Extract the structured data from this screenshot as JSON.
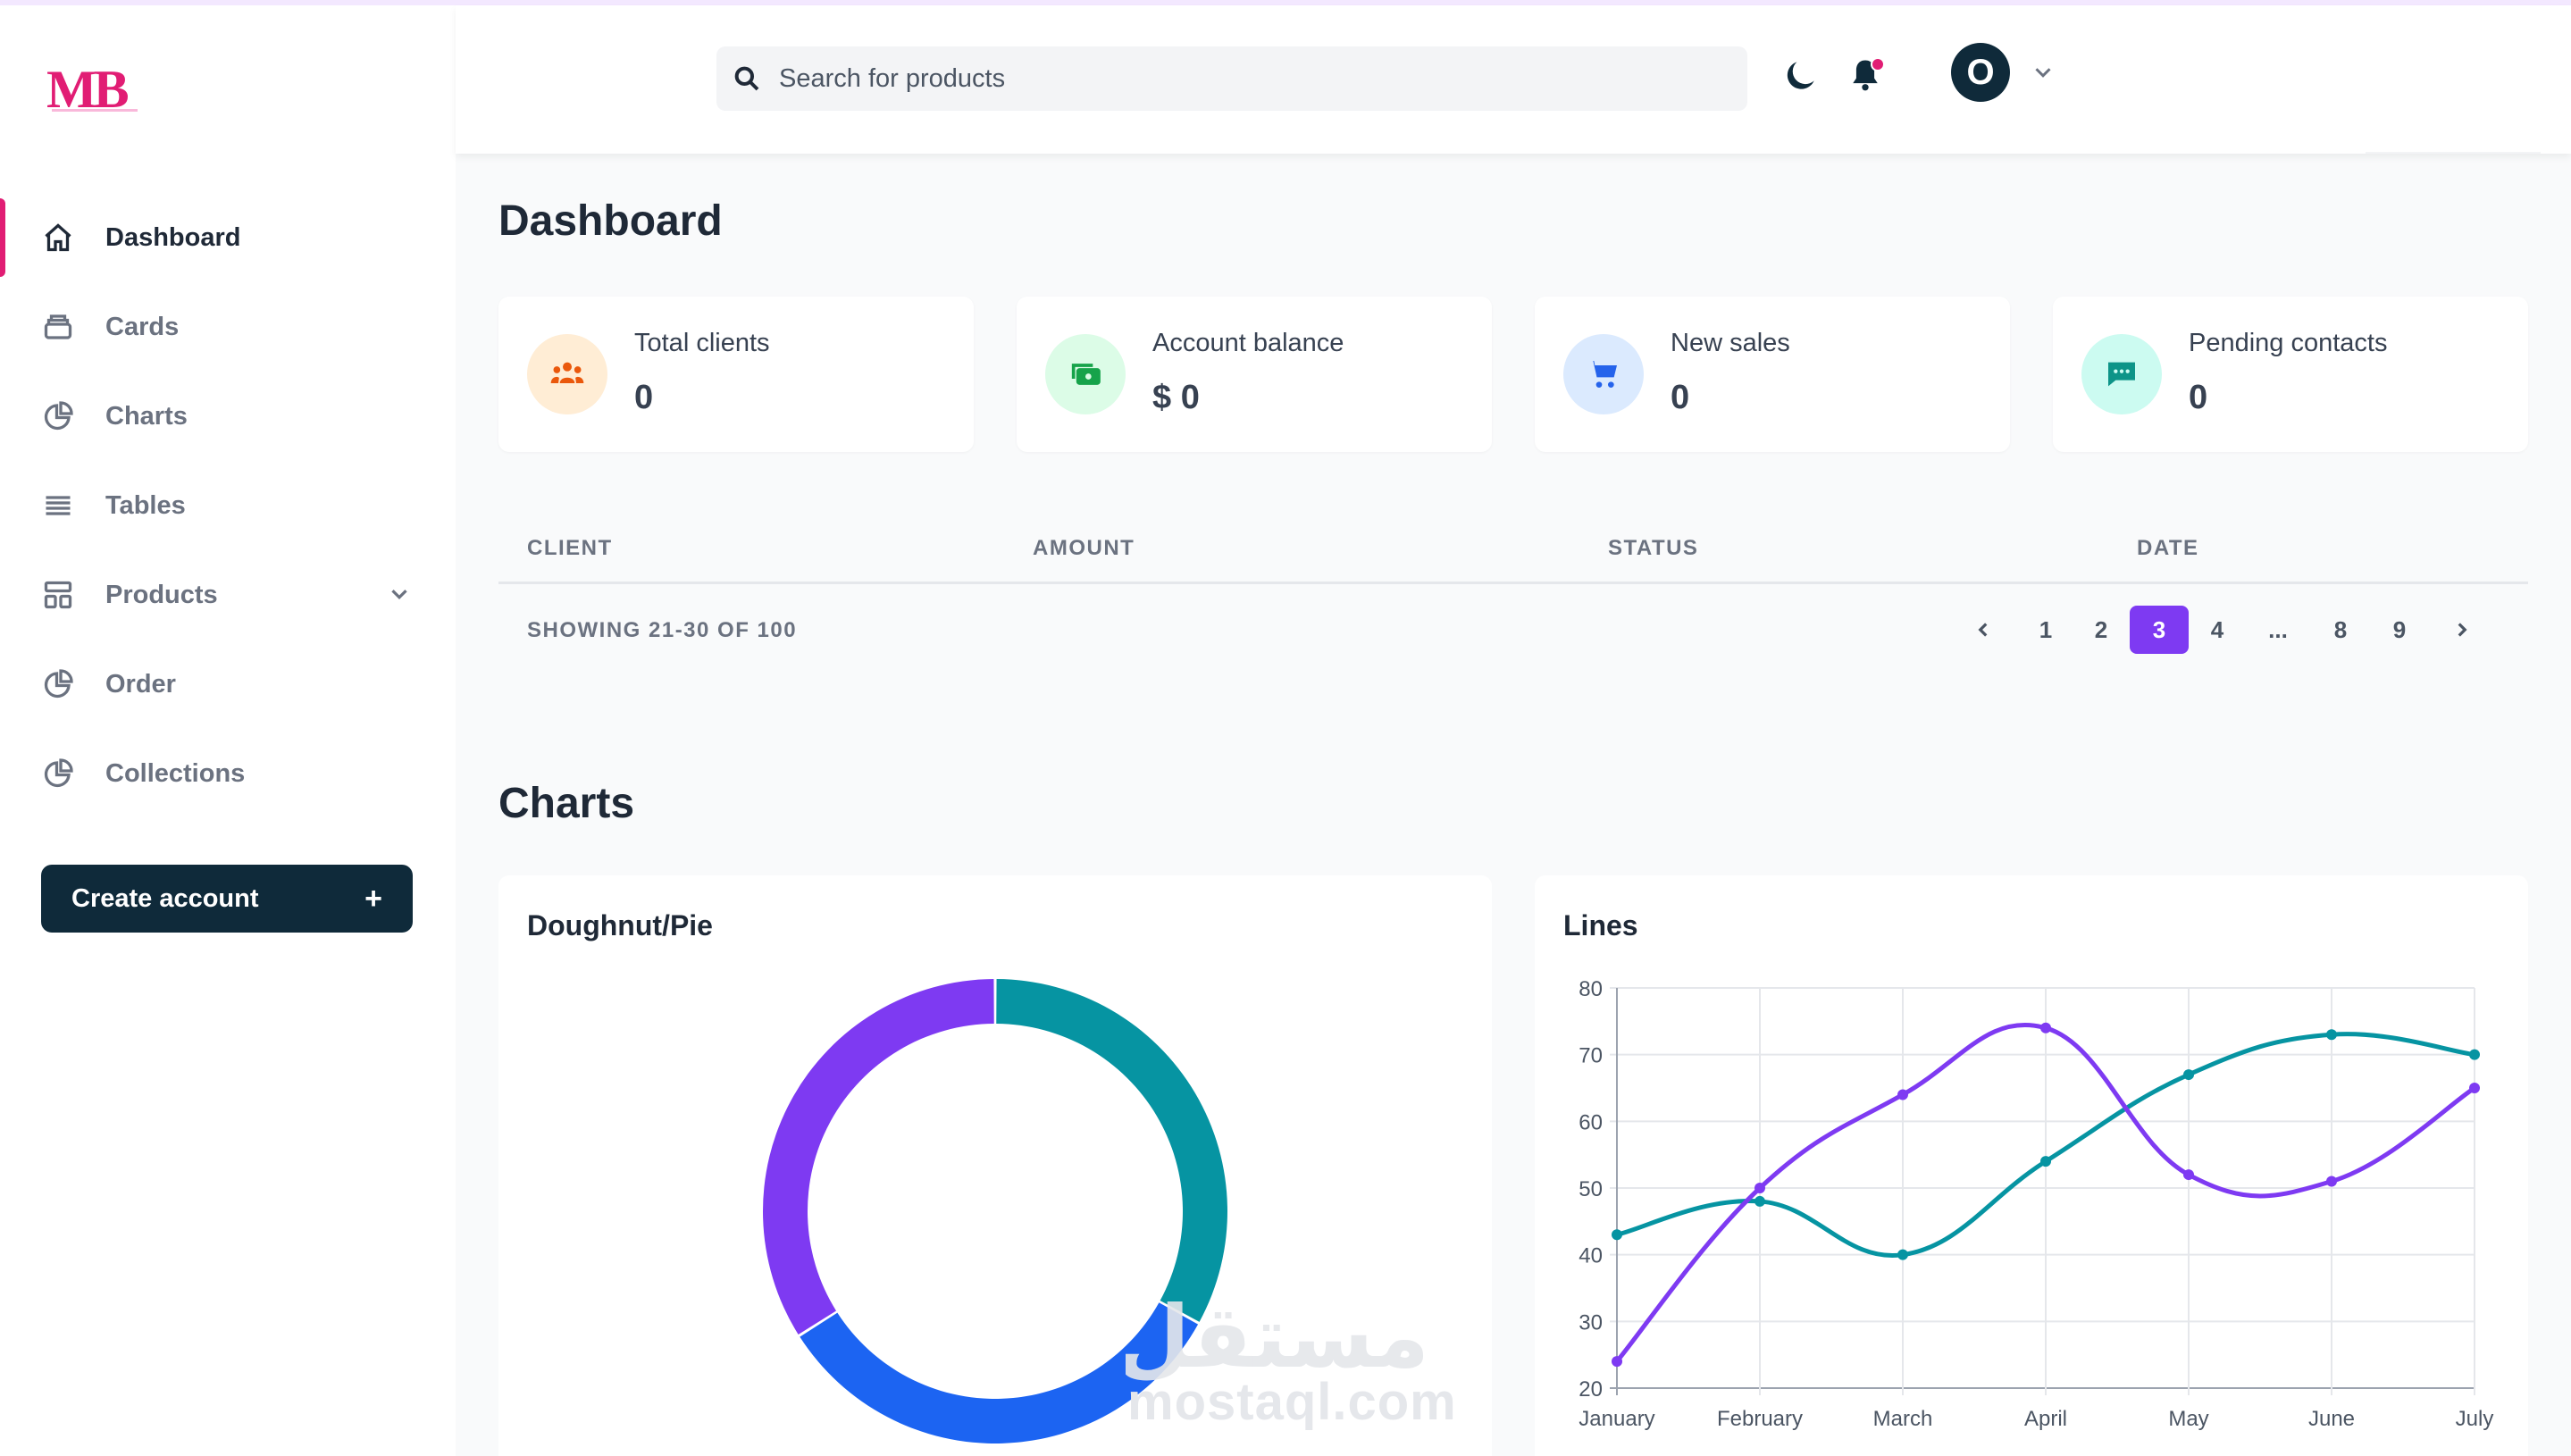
{
  "logo": {
    "text": "MB"
  },
  "search": {
    "placeholder": "Search for products"
  },
  "header": {
    "avatar_initial": "O"
  },
  "sidebar": {
    "items": [
      {
        "label": "Dashboard",
        "icon": "home-icon",
        "active": true
      },
      {
        "label": "Cards",
        "icon": "cards-icon"
      },
      {
        "label": "Charts",
        "icon": "pie-chart-icon"
      },
      {
        "label": "Tables",
        "icon": "list-icon"
      },
      {
        "label": "Products",
        "icon": "layout-icon",
        "has_submenu": true
      },
      {
        "label": "Order",
        "icon": "pie-chart-icon"
      },
      {
        "label": "Collections",
        "icon": "pie-chart-icon"
      }
    ],
    "create_button": {
      "label": "Create account",
      "icon": "+"
    }
  },
  "main": {
    "title": "Dashboard",
    "stats": [
      {
        "label": "Total clients",
        "value": "0",
        "icon": "users-icon",
        "color": "#ea580c",
        "bg": "#ffedd5"
      },
      {
        "label": "Account balance",
        "value": "$ 0",
        "icon": "money-icon",
        "color": "#16a34a",
        "bg": "#dcfce7"
      },
      {
        "label": "New sales",
        "value": "0",
        "icon": "cart-icon",
        "color": "#2563eb",
        "bg": "#dbeafe"
      },
      {
        "label": "Pending contacts",
        "value": "0",
        "icon": "chat-icon",
        "color": "#0d9488",
        "bg": "#ccfbf1"
      }
    ],
    "table": {
      "columns": [
        "CLIENT",
        "AMOUNT",
        "STATUS",
        "DATE"
      ],
      "showing": "SHOWING 21-30 OF 100",
      "pages": [
        "1",
        "2",
        "3",
        "4",
        "...",
        "8",
        "9"
      ],
      "current_page": "3"
    },
    "charts_title": "Charts"
  },
  "watermark": {
    "latin": "mostaql.com",
    "arabic": "مستقل"
  },
  "chart_data": [
    {
      "type": "pie",
      "title": "Doughnut/Pie",
      "variant": "doughnut",
      "values": [
        33,
        33,
        34
      ],
      "colors": [
        "#0694a2",
        "#1c64f2",
        "#7e3af2"
      ]
    },
    {
      "type": "line",
      "title": "Lines",
      "categories": [
        "January",
        "February",
        "March",
        "April",
        "May",
        "June",
        "July"
      ],
      "series": [
        {
          "values": [
            43,
            48,
            40,
            54,
            67,
            73,
            70
          ],
          "color": "#0694a2"
        },
        {
          "values": [
            24,
            50,
            64,
            74,
            52,
            51,
            65
          ],
          "color": "#7e3af2"
        }
      ],
      "ylim": [
        20,
        80
      ],
      "yticks": [
        20,
        30,
        40,
        50,
        60,
        70,
        80
      ],
      "grid": true
    }
  ]
}
